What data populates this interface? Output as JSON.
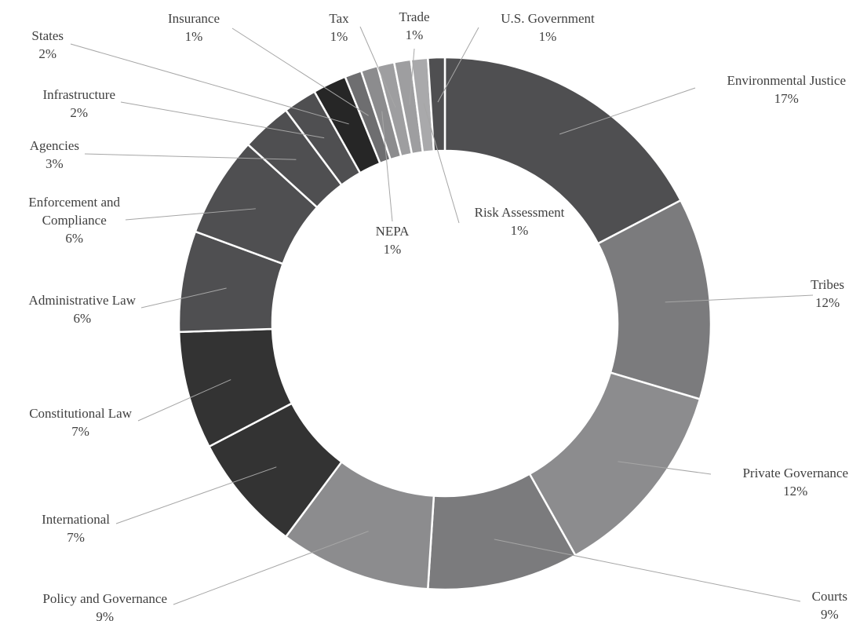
{
  "chart_data": {
    "type": "pie",
    "variant": "donut",
    "title": "",
    "legend": "none",
    "value_unit": "%",
    "slices": [
      {
        "label": "Environmental Justice",
        "value": 17,
        "value_label": "17%",
        "color": "#4f4f51"
      },
      {
        "label": "Tribes",
        "value": 12,
        "value_label": "12%",
        "color": "#7b7b7d"
      },
      {
        "label": "Private Governance",
        "value": 12,
        "value_label": "12%",
        "color": "#8c8c8e"
      },
      {
        "label": "Courts",
        "value": 9,
        "value_label": "9%",
        "color": "#7b7b7d"
      },
      {
        "label": "Policy and Governance",
        "value": 9,
        "value_label": "9%",
        "color": "#8c8c8e"
      },
      {
        "label": "International",
        "value": 7,
        "value_label": "7%",
        "color": "#333333"
      },
      {
        "label": "Constitutional Law",
        "value": 7,
        "value_label": "7%",
        "color": "#333333"
      },
      {
        "label": "Administrative Law",
        "value": 6,
        "value_label": "6%",
        "color": "#4f4f51"
      },
      {
        "label": "Enforcement and Compliance",
        "label_lines": [
          "Enforcement and",
          "Compliance"
        ],
        "value": 6,
        "value_label": "6%",
        "color": "#4f4f51"
      },
      {
        "label": "Agencies",
        "value": 3,
        "value_label": "3%",
        "color": "#4f4f51"
      },
      {
        "label": "Infrastructure",
        "value": 2,
        "value_label": "2%",
        "color": "#4f4f51"
      },
      {
        "label": "States",
        "value": 2,
        "value_label": "2%",
        "color": "#262626"
      },
      {
        "label": "Insurance",
        "value": 1,
        "value_label": "1%",
        "color": "#6e6e70"
      },
      {
        "label": "NEPA",
        "value": 1,
        "value_label": "1%",
        "color": "#8c8c8e"
      },
      {
        "label": "Tax",
        "value": 1,
        "value_label": "1%",
        "color": "#9e9ea0"
      },
      {
        "label": "Trade",
        "value": 1,
        "value_label": "1%",
        "color": "#9e9ea0"
      },
      {
        "label": "Risk Assessment",
        "value": 1,
        "value_label": "1%",
        "color": "#a9a9ab"
      },
      {
        "label": "U.S. Government",
        "value": 1,
        "value_label": "1%",
        "color": "#4f4f51"
      }
    ]
  }
}
